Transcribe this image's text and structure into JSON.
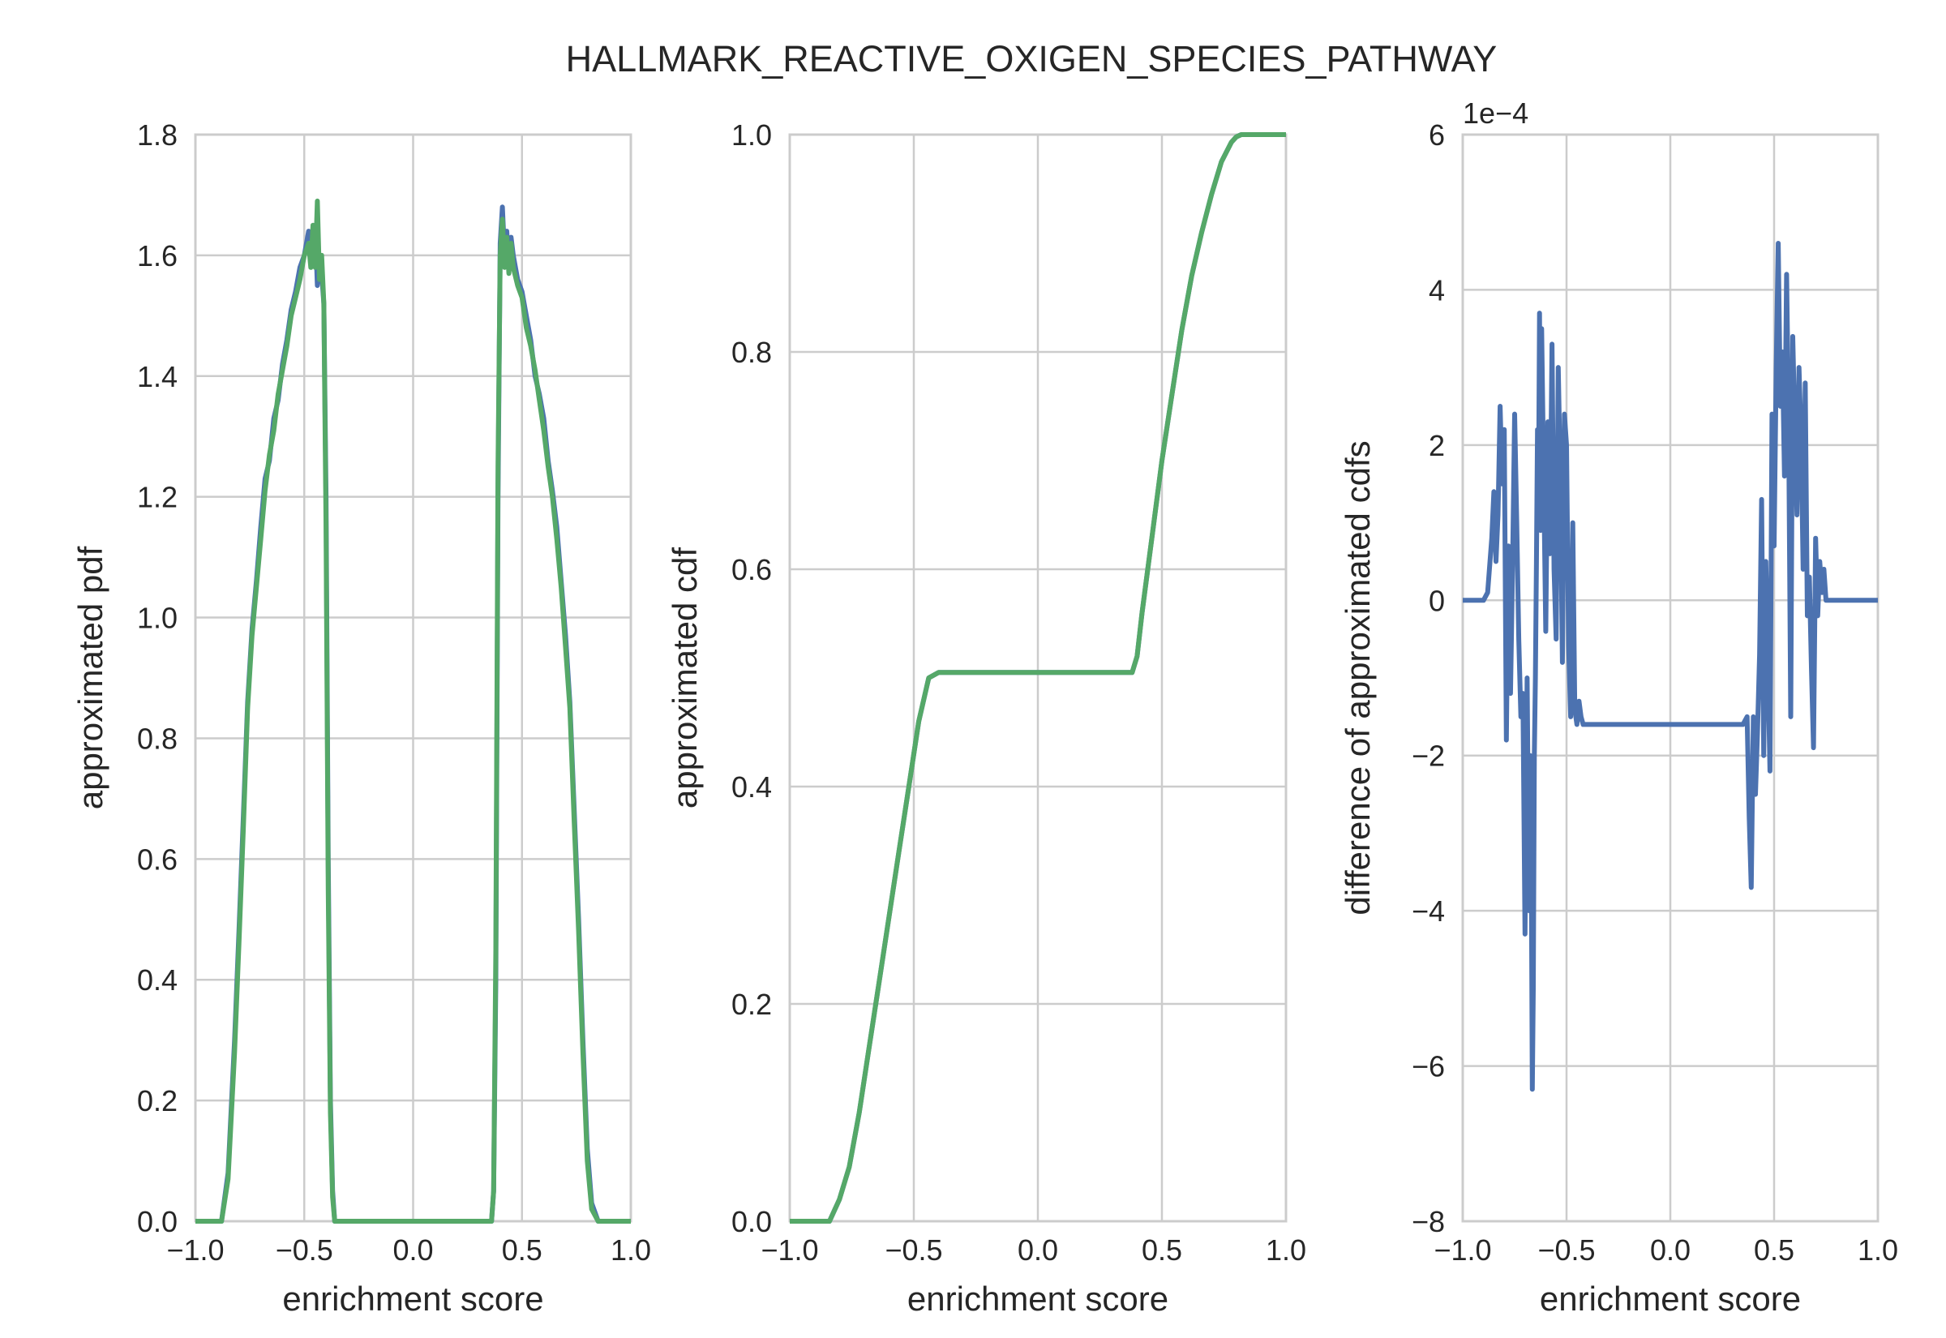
{
  "figure": {
    "title": "HALLMARK_REACTIVE_OXIGEN_SPECIES_PATHWAY",
    "colors": {
      "blue": "#4c72b0",
      "green": "#55a868",
      "grid": "#cccccc",
      "spine": "#cccccc",
      "text": "#262626"
    }
  },
  "chart_data": [
    {
      "type": "line",
      "xlabel": "enrichment score",
      "ylabel": "approximated pdf",
      "xlim": [
        -1.0,
        1.0
      ],
      "ylim": [
        0.0,
        1.8
      ],
      "xticks": [
        "−1.0",
        "−0.5",
        "0.0",
        "0.5",
        "1.0"
      ],
      "yticks": [
        "0.0",
        "0.2",
        "0.4",
        "0.6",
        "0.8",
        "1.0",
        "1.2",
        "1.4",
        "1.6",
        "1.8"
      ],
      "grid": true,
      "series": [
        {
          "color": "#4c72b0",
          "x": [
            -1.0,
            -0.88,
            -0.85,
            -0.82,
            -0.8,
            -0.78,
            -0.76,
            -0.74,
            -0.72,
            -0.7,
            -0.68,
            -0.66,
            -0.64,
            -0.62,
            -0.6,
            -0.58,
            -0.56,
            -0.54,
            -0.52,
            -0.5,
            -0.48,
            -0.46,
            -0.45,
            -0.44,
            -0.43,
            -0.42,
            -0.41,
            -0.4,
            -0.39,
            -0.38,
            -0.37,
            -0.36,
            -0.35,
            0.35,
            0.36,
            0.37,
            0.38,
            0.39,
            0.4,
            0.41,
            0.42,
            0.43,
            0.44,
            0.45,
            0.46,
            0.48,
            0.5,
            0.52,
            0.54,
            0.56,
            0.58,
            0.6,
            0.62,
            0.64,
            0.66,
            0.68,
            0.7,
            0.72,
            0.74,
            0.76,
            0.78,
            0.8,
            0.82,
            0.85,
            0.88,
            1.0
          ],
          "values": [
            0.0,
            0.0,
            0.08,
            0.3,
            0.48,
            0.67,
            0.86,
            0.98,
            1.06,
            1.15,
            1.23,
            1.26,
            1.33,
            1.36,
            1.42,
            1.46,
            1.51,
            1.54,
            1.58,
            1.6,
            1.64,
            1.62,
            1.65,
            1.55,
            1.6,
            1.57,
            1.52,
            1.2,
            0.6,
            0.2,
            0.05,
            0.0,
            0.0,
            0.0,
            0.0,
            0.05,
            0.4,
            1.2,
            1.62,
            1.68,
            1.6,
            1.64,
            1.58,
            1.63,
            1.6,
            1.56,
            1.54,
            1.5,
            1.46,
            1.4,
            1.37,
            1.33,
            1.26,
            1.21,
            1.15,
            1.06,
            0.97,
            0.86,
            0.68,
            0.5,
            0.3,
            0.12,
            0.03,
            0.0,
            0.0,
            0.0
          ]
        },
        {
          "color": "#55a868",
          "x": [
            -1.0,
            -0.88,
            -0.85,
            -0.82,
            -0.8,
            -0.78,
            -0.76,
            -0.74,
            -0.72,
            -0.7,
            -0.68,
            -0.66,
            -0.64,
            -0.62,
            -0.6,
            -0.58,
            -0.56,
            -0.54,
            -0.52,
            -0.5,
            -0.48,
            -0.47,
            -0.46,
            -0.45,
            -0.44,
            -0.43,
            -0.42,
            -0.41,
            -0.4,
            -0.39,
            -0.38,
            -0.37,
            -0.36,
            -0.35,
            0.35,
            0.36,
            0.37,
            0.38,
            0.39,
            0.4,
            0.41,
            0.42,
            0.43,
            0.44,
            0.45,
            0.46,
            0.48,
            0.5,
            0.52,
            0.54,
            0.56,
            0.58,
            0.6,
            0.62,
            0.64,
            0.66,
            0.68,
            0.7,
            0.72,
            0.74,
            0.76,
            0.78,
            0.8,
            0.82,
            0.85,
            0.88,
            1.0
          ],
          "values": [
            0.0,
            0.0,
            0.07,
            0.28,
            0.46,
            0.65,
            0.85,
            0.97,
            1.05,
            1.13,
            1.21,
            1.27,
            1.31,
            1.37,
            1.41,
            1.45,
            1.5,
            1.53,
            1.56,
            1.6,
            1.62,
            1.58,
            1.65,
            1.58,
            1.69,
            1.56,
            1.6,
            1.52,
            1.15,
            0.55,
            0.18,
            0.04,
            0.0,
            0.0,
            0.0,
            0.0,
            0.05,
            0.45,
            1.25,
            1.6,
            1.66,
            1.58,
            1.63,
            1.57,
            1.62,
            1.58,
            1.55,
            1.53,
            1.48,
            1.45,
            1.41,
            1.36,
            1.31,
            1.25,
            1.2,
            1.13,
            1.05,
            0.95,
            0.85,
            0.66,
            0.48,
            0.28,
            0.1,
            0.02,
            0.0,
            0.0,
            0.0
          ]
        }
      ]
    },
    {
      "type": "line",
      "xlabel": "enrichment score",
      "ylabel": "approximated cdf",
      "xlim": [
        -1.0,
        1.0
      ],
      "ylim": [
        0.0,
        1.0
      ],
      "xticks": [
        "−1.0",
        "−0.5",
        "0.0",
        "0.5",
        "1.0"
      ],
      "yticks": [
        "0.0",
        "0.2",
        "0.4",
        "0.6",
        "0.8",
        "1.0"
      ],
      "grid": true,
      "series": [
        {
          "color": "#4c72b0",
          "x": [
            -1.0,
            -0.84,
            -0.8,
            -0.76,
            -0.72,
            -0.68,
            -0.64,
            -0.6,
            -0.56,
            -0.52,
            -0.48,
            -0.44,
            -0.4,
            -0.38,
            -0.36,
            -0.34,
            0.36,
            0.38,
            0.4,
            0.42,
            0.46,
            0.5,
            0.54,
            0.58,
            0.62,
            0.66,
            0.7,
            0.74,
            0.78,
            0.8,
            0.82,
            0.84,
            1.0
          ],
          "values": [
            0.0,
            0.0,
            0.02,
            0.05,
            0.1,
            0.16,
            0.22,
            0.28,
            0.34,
            0.4,
            0.46,
            0.5,
            0.505,
            0.505,
            0.505,
            0.505,
            0.505,
            0.505,
            0.52,
            0.56,
            0.63,
            0.7,
            0.76,
            0.82,
            0.87,
            0.91,
            0.945,
            0.975,
            0.993,
            0.998,
            1.0,
            1.0,
            1.0
          ]
        },
        {
          "color": "#55a868",
          "x": [
            -1.0,
            -0.84,
            -0.8,
            -0.76,
            -0.72,
            -0.68,
            -0.64,
            -0.6,
            -0.56,
            -0.52,
            -0.48,
            -0.44,
            -0.4,
            -0.38,
            -0.36,
            -0.34,
            0.36,
            0.38,
            0.4,
            0.42,
            0.46,
            0.5,
            0.54,
            0.58,
            0.62,
            0.66,
            0.7,
            0.74,
            0.78,
            0.8,
            0.82,
            0.84,
            1.0
          ],
          "values": [
            0.0,
            0.0,
            0.02,
            0.05,
            0.1,
            0.16,
            0.22,
            0.28,
            0.34,
            0.4,
            0.46,
            0.5,
            0.505,
            0.505,
            0.505,
            0.505,
            0.505,
            0.505,
            0.52,
            0.56,
            0.63,
            0.7,
            0.76,
            0.82,
            0.87,
            0.91,
            0.945,
            0.975,
            0.993,
            0.998,
            1.0,
            1.0,
            1.0
          ]
        }
      ]
    },
    {
      "type": "line",
      "xlabel": "enrichment score",
      "ylabel": "difference of approximated cdfs",
      "xlim": [
        -1.0,
        1.0
      ],
      "ylim": [
        -8,
        6
      ],
      "y_offset_label": "1e−4",
      "xticks": [
        "−1.0",
        "−0.5",
        "0.0",
        "0.5",
        "1.0"
      ],
      "yticks": [
        "−8",
        "−6",
        "−4",
        "−2",
        "0",
        "2",
        "4",
        "6"
      ],
      "grid": true,
      "series": [
        {
          "color": "#4c72b0",
          "x": [
            -1.0,
            -0.9,
            -0.88,
            -0.86,
            -0.85,
            -0.84,
            -0.83,
            -0.82,
            -0.81,
            -0.8,
            -0.79,
            -0.78,
            -0.77,
            -0.76,
            -0.75,
            -0.74,
            -0.73,
            -0.72,
            -0.71,
            -0.7,
            -0.69,
            -0.68,
            -0.675,
            -0.67,
            -0.665,
            -0.66,
            -0.655,
            -0.65,
            -0.645,
            -0.64,
            -0.635,
            -0.63,
            -0.625,
            -0.62,
            -0.61,
            -0.6,
            -0.59,
            -0.58,
            -0.57,
            -0.56,
            -0.55,
            -0.54,
            -0.53,
            -0.52,
            -0.51,
            -0.5,
            -0.49,
            -0.48,
            -0.47,
            -0.46,
            -0.45,
            -0.44,
            -0.43,
            -0.42,
            -0.41,
            -0.4,
            -0.39,
            -0.38,
            -0.36,
            -0.3,
            0.0,
            0.35,
            0.37,
            0.38,
            0.39,
            0.4,
            0.41,
            0.42,
            0.43,
            0.44,
            0.45,
            0.46,
            0.47,
            0.48,
            0.49,
            0.5,
            0.51,
            0.52,
            0.53,
            0.54,
            0.55,
            0.56,
            0.57,
            0.58,
            0.59,
            0.6,
            0.61,
            0.62,
            0.63,
            0.64,
            0.65,
            0.66,
            0.67,
            0.68,
            0.69,
            0.7,
            0.71,
            0.72,
            0.73,
            0.74,
            0.75,
            0.76,
            0.77,
            0.78,
            0.79,
            0.8,
            0.81,
            0.82,
            0.83,
            0.85,
            0.88,
            1.0
          ],
          "values": [
            0.0,
            0.0,
            0.1,
            0.8,
            1.4,
            0.5,
            1.1,
            2.5,
            1.5,
            2.2,
            -1.8,
            0.7,
            -1.2,
            0.4,
            2.4,
            1.0,
            -0.5,
            -1.5,
            -1.2,
            -4.3,
            -1.0,
            -4.0,
            -2.0,
            -3.3,
            -6.3,
            -5.0,
            -2.0,
            -1.0,
            0.5,
            2.2,
            1.3,
            3.7,
            0.9,
            3.5,
            1.6,
            -0.4,
            2.3,
            0.6,
            3.3,
            0.4,
            -0.5,
            3.0,
            1.6,
            -0.8,
            2.4,
            2.0,
            -0.6,
            -1.5,
            1.0,
            -1.4,
            -1.6,
            -1.3,
            -1.5,
            -1.6,
            -1.6,
            -1.6,
            -1.6,
            -1.6,
            -1.6,
            -1.6,
            -1.6,
            -1.6,
            -1.5,
            -2.8,
            -3.7,
            -1.5,
            -2.5,
            -1.7,
            -0.7,
            1.3,
            -2.0,
            0.5,
            -0.8,
            -2.2,
            2.4,
            0.7,
            3.0,
            4.6,
            2.5,
            3.2,
            1.6,
            4.2,
            2.3,
            -1.5,
            3.4,
            2.2,
            1.1,
            3.0,
            2.1,
            0.4,
            2.8,
            -0.2,
            0.3,
            -0.9,
            -1.9,
            0.8,
            -0.2,
            0.5,
            0.1,
            0.4,
            0.0,
            0.0,
            0.0,
            0.0,
            0.0,
            0.0,
            0.0,
            0.0,
            0.0,
            0.0,
            0.0,
            0.0
          ]
        }
      ]
    }
  ]
}
